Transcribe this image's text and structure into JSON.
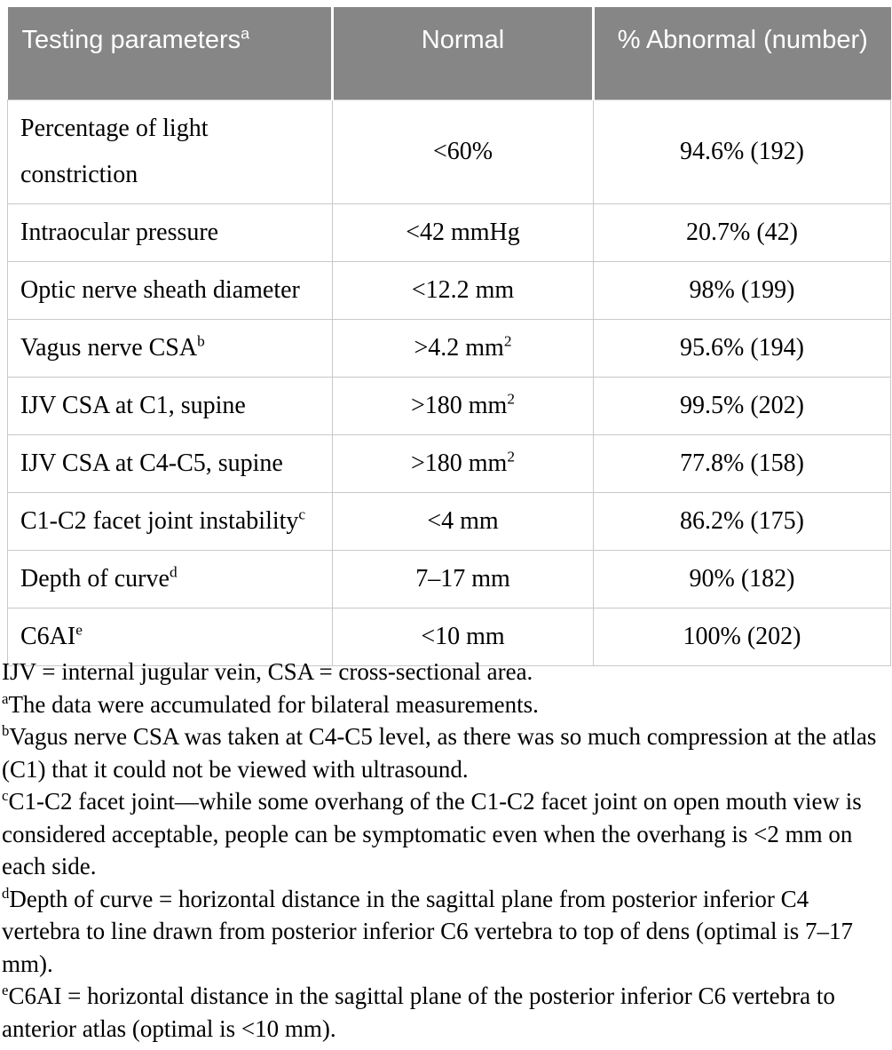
{
  "colors": {
    "header_bg": "#868686",
    "header_text": "#ffffff",
    "grid_border": "#c9c9c9",
    "body_text": "#000000"
  },
  "table": {
    "headers": {
      "col1": "Testing parameters",
      "col1_sup": "a",
      "col2": "Normal",
      "col3": "% Abnormal (number)"
    },
    "rows": [
      {
        "parameter": "Percentage of light constriction",
        "parameter_sup": "",
        "normal": "<60%",
        "normal_sup": "",
        "abnormal": "94.6% (192)"
      },
      {
        "parameter": "Intraocular pressure",
        "parameter_sup": "",
        "normal": "<42 mmHg",
        "normal_sup": "",
        "abnormal": "20.7% (42)"
      },
      {
        "parameter": "Optic nerve sheath diameter",
        "parameter_sup": "",
        "normal": "<12.2 mm",
        "normal_sup": "",
        "abnormal": "98% (199)"
      },
      {
        "parameter": "Vagus nerve CSA",
        "parameter_sup": "b",
        "normal": ">4.2 mm",
        "normal_sup": "2",
        "abnormal": "95.6% (194)"
      },
      {
        "parameter": "IJV CSA at C1, supine",
        "parameter_sup": "",
        "normal": ">180 mm",
        "normal_sup": "2",
        "abnormal": "99.5% (202)"
      },
      {
        "parameter": "IJV CSA at C4-C5, supine",
        "parameter_sup": "",
        "normal": ">180 mm",
        "normal_sup": "2",
        "abnormal": "77.8% (158)"
      },
      {
        "parameter": "C1-C2 facet joint instability",
        "parameter_sup": "c",
        "normal": "<4 mm",
        "normal_sup": "",
        "abnormal": "86.2% (175)"
      },
      {
        "parameter": "Depth of curve",
        "parameter_sup": "d",
        "normal": "7–17 mm",
        "normal_sup": "",
        "abnormal": "90% (182)"
      },
      {
        "parameter": "C6AI",
        "parameter_sup": "e",
        "normal": "<10 mm",
        "normal_sup": "",
        "abnormal": "100% (202)"
      }
    ]
  },
  "footnotes": [
    {
      "sup": "",
      "text": "IJV = internal jugular vein, CSA = cross-sectional area."
    },
    {
      "sup": "a",
      "text": "The data were accumulated for bilateral measurements."
    },
    {
      "sup": "b",
      "text": "Vagus nerve CSA was taken at C4-C5 level, as there was so much compression at the atlas (C1) that it could not be viewed with ultrasound."
    },
    {
      "sup": "c",
      "text": "C1-C2 facet joint—while some overhang of the C1-C2 facet joint on open mouth view is considered acceptable, people can be symptomatic even when the overhang is <2 mm on each side."
    },
    {
      "sup": "d",
      "text": "Depth of curve = horizontal distance in the sagittal plane from posterior inferior C4 vertebra to line drawn from posterior inferior C6 vertebra to top of dens (optimal is 7–17 mm)."
    },
    {
      "sup": "e",
      "text": "C6AI = horizontal distance in the sagittal plane of the posterior inferior C6 vertebra to anterior atlas (optimal is <10 mm)."
    }
  ]
}
